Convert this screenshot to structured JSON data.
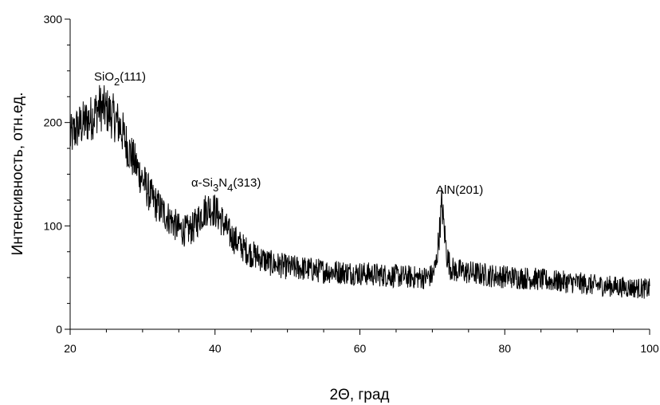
{
  "chart_data": {
    "type": "line",
    "xlabel": "2Θ, град",
    "ylabel": "Интенсивность, отн.ед.",
    "xlim": [
      20,
      100
    ],
    "ylim": [
      0,
      300
    ],
    "x_ticks": [
      20,
      40,
      60,
      80,
      100
    ],
    "y_ticks": [
      0,
      100,
      200,
      300
    ],
    "x_tick_labels": [
      "20",
      "40",
      "60",
      "80",
      "100"
    ],
    "y_tick_labels": [
      "0",
      "100",
      "200",
      "300"
    ],
    "grid": false,
    "line_color": "#000000",
    "series": [
      {
        "x": [
          20,
          21,
          22,
          23,
          24,
          25,
          26,
          27,
          28,
          29,
          30,
          31,
          32,
          33,
          34,
          35,
          36,
          37,
          38,
          39,
          40,
          41,
          42,
          43,
          44,
          45,
          46,
          47,
          48,
          49,
          50,
          52,
          54,
          56,
          58,
          60,
          62,
          64,
          66,
          68,
          69,
          70,
          70.5,
          71,
          71.3,
          71.6,
          72,
          72.5,
          73,
          74,
          76,
          78,
          80,
          82,
          84,
          86,
          88,
          90,
          92,
          94,
          96,
          98,
          100
        ],
        "values": [
          185,
          195,
          200,
          205,
          215,
          212,
          205,
          195,
          175,
          160,
          145,
          130,
          120,
          112,
          105,
          97,
          95,
          98,
          110,
          118,
          115,
          105,
          92,
          85,
          78,
          73,
          70,
          66,
          63,
          62,
          60,
          59,
          57,
          56,
          55,
          54,
          53,
          52,
          51,
          50,
          50,
          52,
          62,
          95,
          122,
          100,
          72,
          60,
          57,
          56,
          54,
          52,
          51,
          50,
          49,
          47,
          46,
          45,
          43,
          42,
          41,
          40,
          39
        ]
      }
    ],
    "annotations": [
      {
        "id": "sio2",
        "base": "SiO",
        "sub": "2",
        "rest": "(111)",
        "x": 26,
        "y": 236
      },
      {
        "id": "si3n4",
        "base": "α-Si",
        "sub": "3",
        "mid": "N",
        "sub2": "4",
        "rest": "(313)",
        "x": 40,
        "y": 133
      },
      {
        "id": "aln",
        "text": "AlN(201)",
        "x": 71.3,
        "y": 134
      }
    ]
  }
}
